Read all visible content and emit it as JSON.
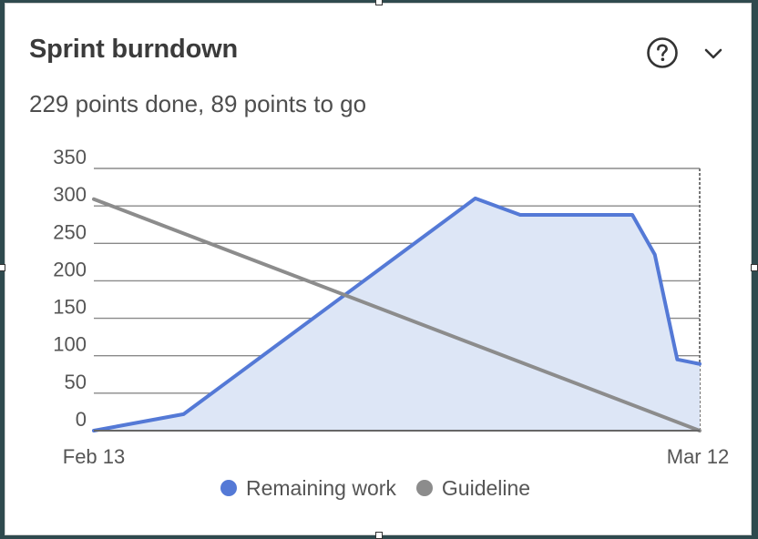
{
  "card": {
    "title": "Sprint burndown",
    "subtitle": "229 points done, 89 points to go"
  },
  "icons": {
    "help": "help-circle-icon",
    "menu": "chevron-down-icon"
  },
  "colors": {
    "remaining": "#5479d6",
    "remaining_fill": "#dde6f6",
    "guideline": "#8c8c8c",
    "grid": "#8a8a8a"
  },
  "chart_data": {
    "type": "area",
    "title": "",
    "xlabel": "",
    "ylabel": "",
    "ylim": [
      0,
      350
    ],
    "yticks": [
      0,
      50,
      100,
      150,
      200,
      250,
      300,
      350
    ],
    "xlim": [
      "2025-02-13",
      "2025-03-12"
    ],
    "xtick_labels": [
      "Feb 13",
      "Mar 12"
    ],
    "grid": true,
    "legend_position": "bottom",
    "series": [
      {
        "name": "Remaining work",
        "type": "area",
        "points": [
          {
            "x": "2025-02-13",
            "y": 0
          },
          {
            "x": "2025-02-17",
            "y": 22
          },
          {
            "x": "2025-03-02",
            "y": 310
          },
          {
            "x": "2025-03-04",
            "y": 288
          },
          {
            "x": "2025-03-09",
            "y": 288
          },
          {
            "x": "2025-03-10",
            "y": 235
          },
          {
            "x": "2025-03-11",
            "y": 95
          },
          {
            "x": "2025-03-12",
            "y": 89
          }
        ]
      },
      {
        "name": "Guideline",
        "type": "line",
        "points": [
          {
            "x": "2025-02-13",
            "y": 309
          },
          {
            "x": "2025-03-12",
            "y": 0
          }
        ]
      }
    ]
  }
}
